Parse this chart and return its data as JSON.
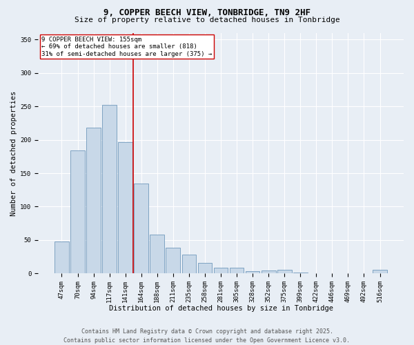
{
  "title_line1": "9, COPPER BEECH VIEW, TONBRIDGE, TN9 2HF",
  "title_line2": "Size of property relative to detached houses in Tonbridge",
  "xlabel": "Distribution of detached houses by size in Tonbridge",
  "ylabel": "Number of detached properties",
  "categories": [
    "47sqm",
    "70sqm",
    "94sqm",
    "117sqm",
    "141sqm",
    "164sqm",
    "188sqm",
    "211sqm",
    "235sqm",
    "258sqm",
    "281sqm",
    "305sqm",
    "328sqm",
    "352sqm",
    "375sqm",
    "399sqm",
    "422sqm",
    "446sqm",
    "469sqm",
    "492sqm",
    "516sqm"
  ],
  "values": [
    48,
    184,
    218,
    252,
    196,
    135,
    58,
    39,
    28,
    16,
    9,
    9,
    3,
    4,
    6,
    1,
    0,
    0,
    0,
    0,
    6
  ],
  "bar_color": "#c8d8e8",
  "bar_edge_color": "#7099bb",
  "vline_color": "#cc0000",
  "annotation_text": "9 COPPER BEECH VIEW: 155sqm\n← 69% of detached houses are smaller (818)\n31% of semi-detached houses are larger (375) →",
  "annotation_box_color": "#ffffff",
  "annotation_box_edge": "#cc0000",
  "ylim": [
    0,
    360
  ],
  "yticks": [
    0,
    50,
    100,
    150,
    200,
    250,
    300,
    350
  ],
  "background_color": "#e8eef5",
  "footer_line1": "Contains HM Land Registry data © Crown copyright and database right 2025.",
  "footer_line2": "Contains public sector information licensed under the Open Government Licence v3.0.",
  "title_fontsize": 9,
  "subtitle_fontsize": 8,
  "axis_label_fontsize": 7.5,
  "tick_fontsize": 6.5,
  "annotation_fontsize": 6.5,
  "footer_fontsize": 6
}
